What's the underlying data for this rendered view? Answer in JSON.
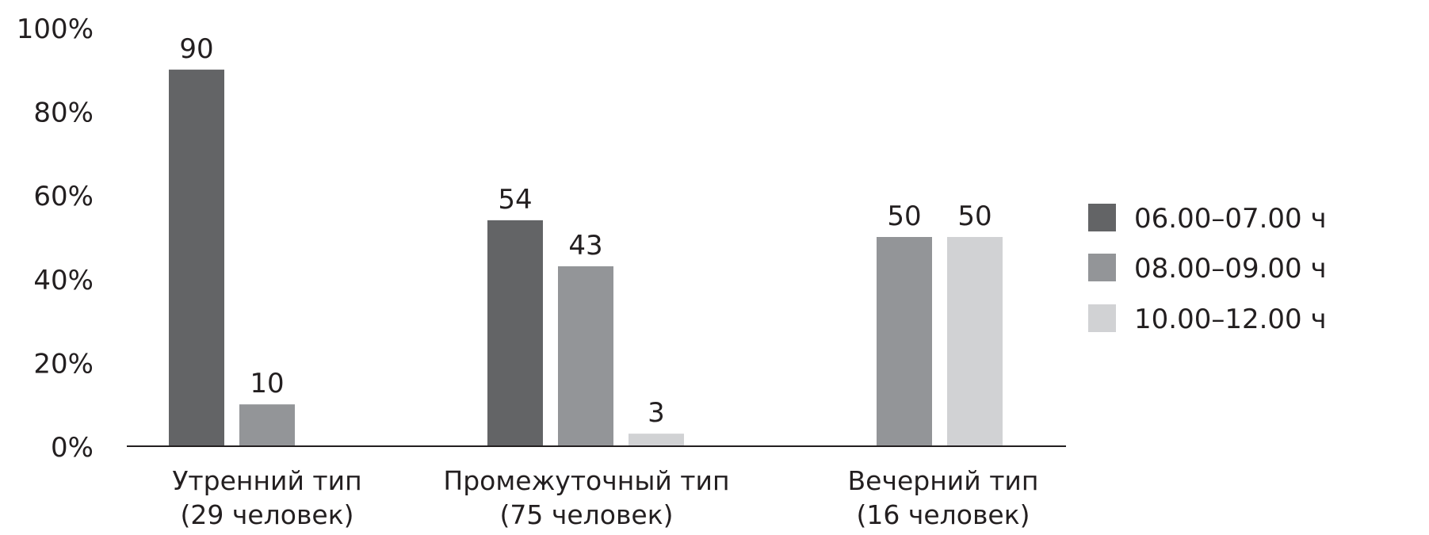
{
  "colors": {
    "series_dark": "#636466",
    "series_mid": "#939598",
    "series_light": "#d1d2d4",
    "axis": "#231f20",
    "text": "#231f20"
  },
  "chart_data": {
    "type": "bar",
    "title": "",
    "xlabel": "",
    "ylabel": "",
    "ylim": [
      0,
      100
    ],
    "y_ticks": [
      0,
      20,
      40,
      60,
      80,
      100
    ],
    "y_tick_labels": [
      "0%",
      "20%",
      "40%",
      "60%",
      "80%",
      "100%"
    ],
    "grid": false,
    "legend_position": "right",
    "categories": [
      [
        "Утренний тип",
        "(29 человек)"
      ],
      [
        "Промежуточный тип",
        "(75 человек)"
      ],
      [
        "Вечерний тип",
        "(16 человек)"
      ]
    ],
    "series": [
      {
        "name": "06.00–07.00 ч",
        "color": "#636466",
        "values": [
          90,
          54,
          0
        ]
      },
      {
        "name": "08.00–09.00 ч",
        "color": "#939598",
        "values": [
          10,
          43,
          50
        ]
      },
      {
        "name": "10.00–12.00 ч",
        "color": "#d1d2d4",
        "values": [
          0,
          3,
          50
        ]
      }
    ]
  }
}
